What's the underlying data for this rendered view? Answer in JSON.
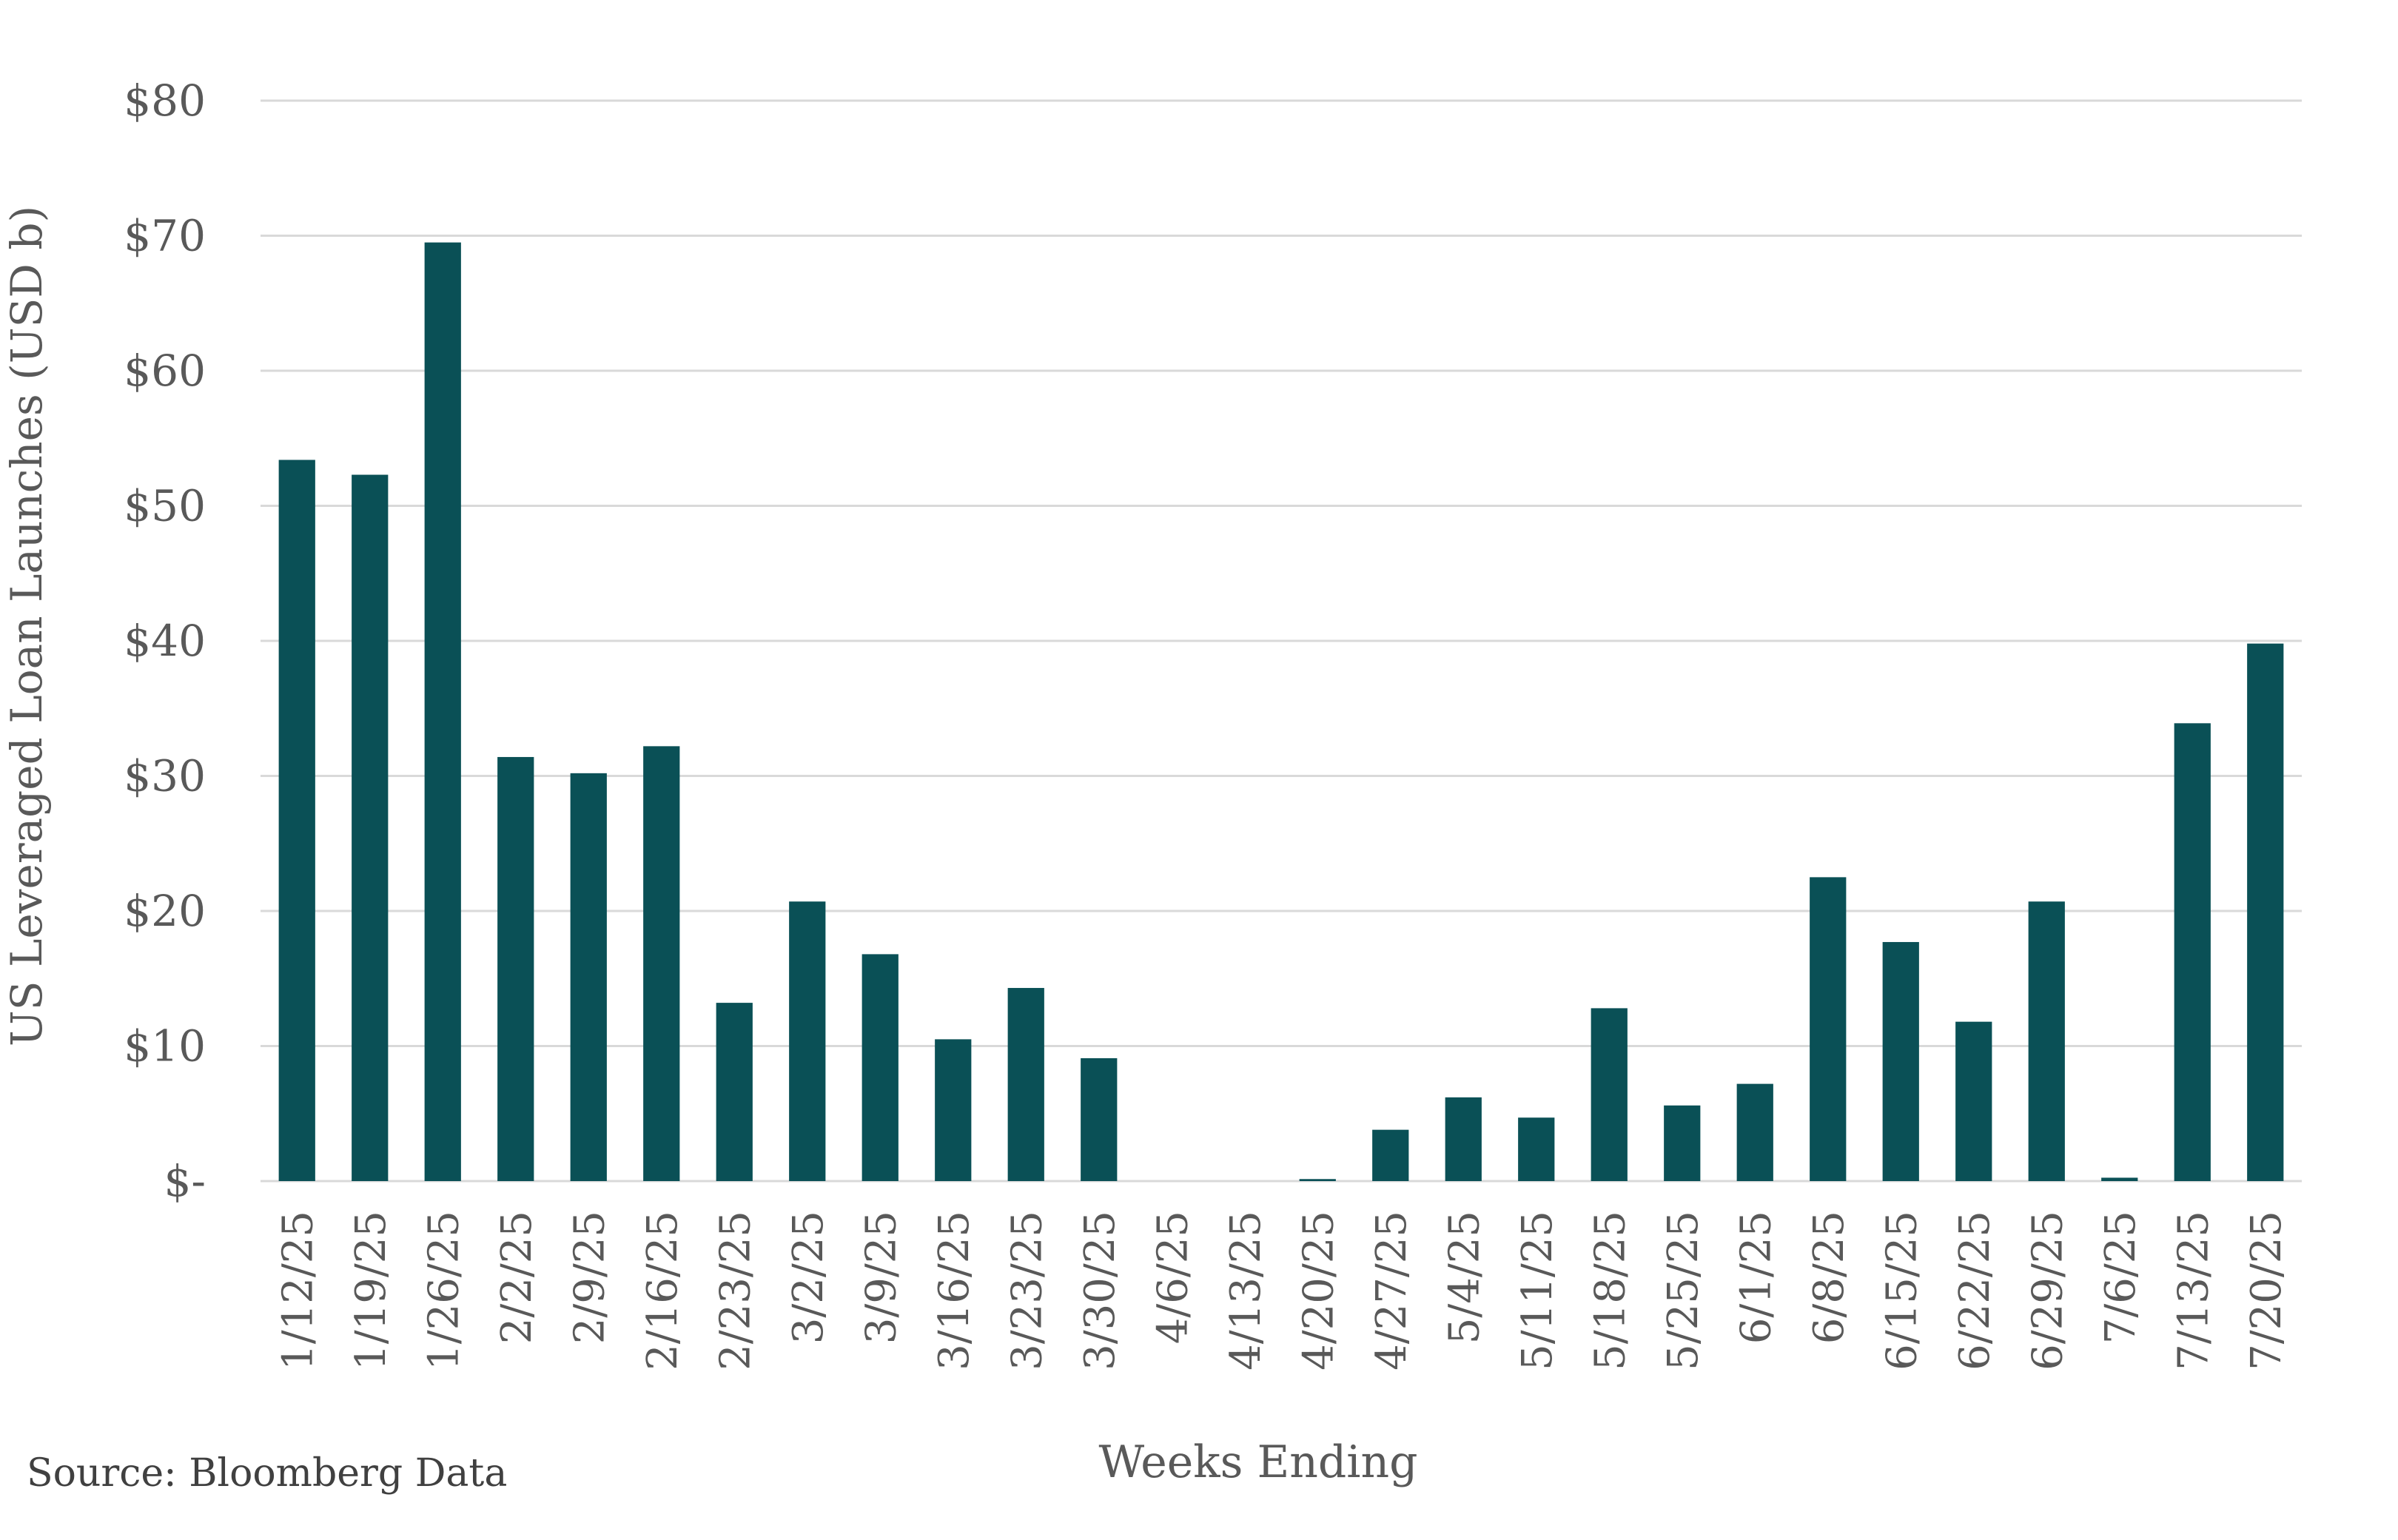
{
  "colors": {
    "bar": "#0a5056",
    "grid": "#d9d9d9",
    "text": "#595959",
    "background": "#ffffff"
  },
  "source": "Source: Bloomberg Data",
  "chart_data": {
    "type": "bar",
    "title": "",
    "xlabel": "Weeks Ending",
    "ylabel": "US Leveraged Loan Launches (USD b)",
    "ylim": [
      0,
      80
    ],
    "yticks": [
      0,
      10,
      20,
      30,
      40,
      50,
      60,
      70,
      80
    ],
    "ytick_labels": [
      "$-",
      "$10",
      "$20",
      "$30",
      "$40",
      "$50",
      "$60",
      "$70",
      "$80"
    ],
    "grid": true,
    "legend": "none",
    "categories": [
      "1/12/25",
      "1/19/25",
      "1/26/25",
      "2/2/25",
      "2/9/25",
      "2/16/25",
      "2/23/25",
      "3/2/25",
      "3/9/25",
      "3/16/25",
      "3/23/25",
      "3/30/25",
      "4/6/25",
      "4/13/25",
      "4/20/25",
      "4/27/25",
      "5/4/25",
      "5/11/25",
      "5/18/25",
      "5/25/25",
      "6/1/25",
      "6/8/25",
      "6/15/25",
      "6/22/25",
      "6/29/25",
      "7/6/25",
      "7/13/25",
      "7/20/25"
    ],
    "values": [
      53.4,
      52.3,
      69.5,
      31.4,
      30.2,
      32.2,
      13.2,
      20.7,
      16.8,
      10.5,
      14.3,
      9.1,
      0,
      0,
      0.15,
      3.8,
      6.2,
      4.7,
      12.8,
      5.6,
      7.2,
      22.5,
      17.7,
      11.8,
      20.7,
      0.25,
      33.9,
      39.8
    ]
  }
}
